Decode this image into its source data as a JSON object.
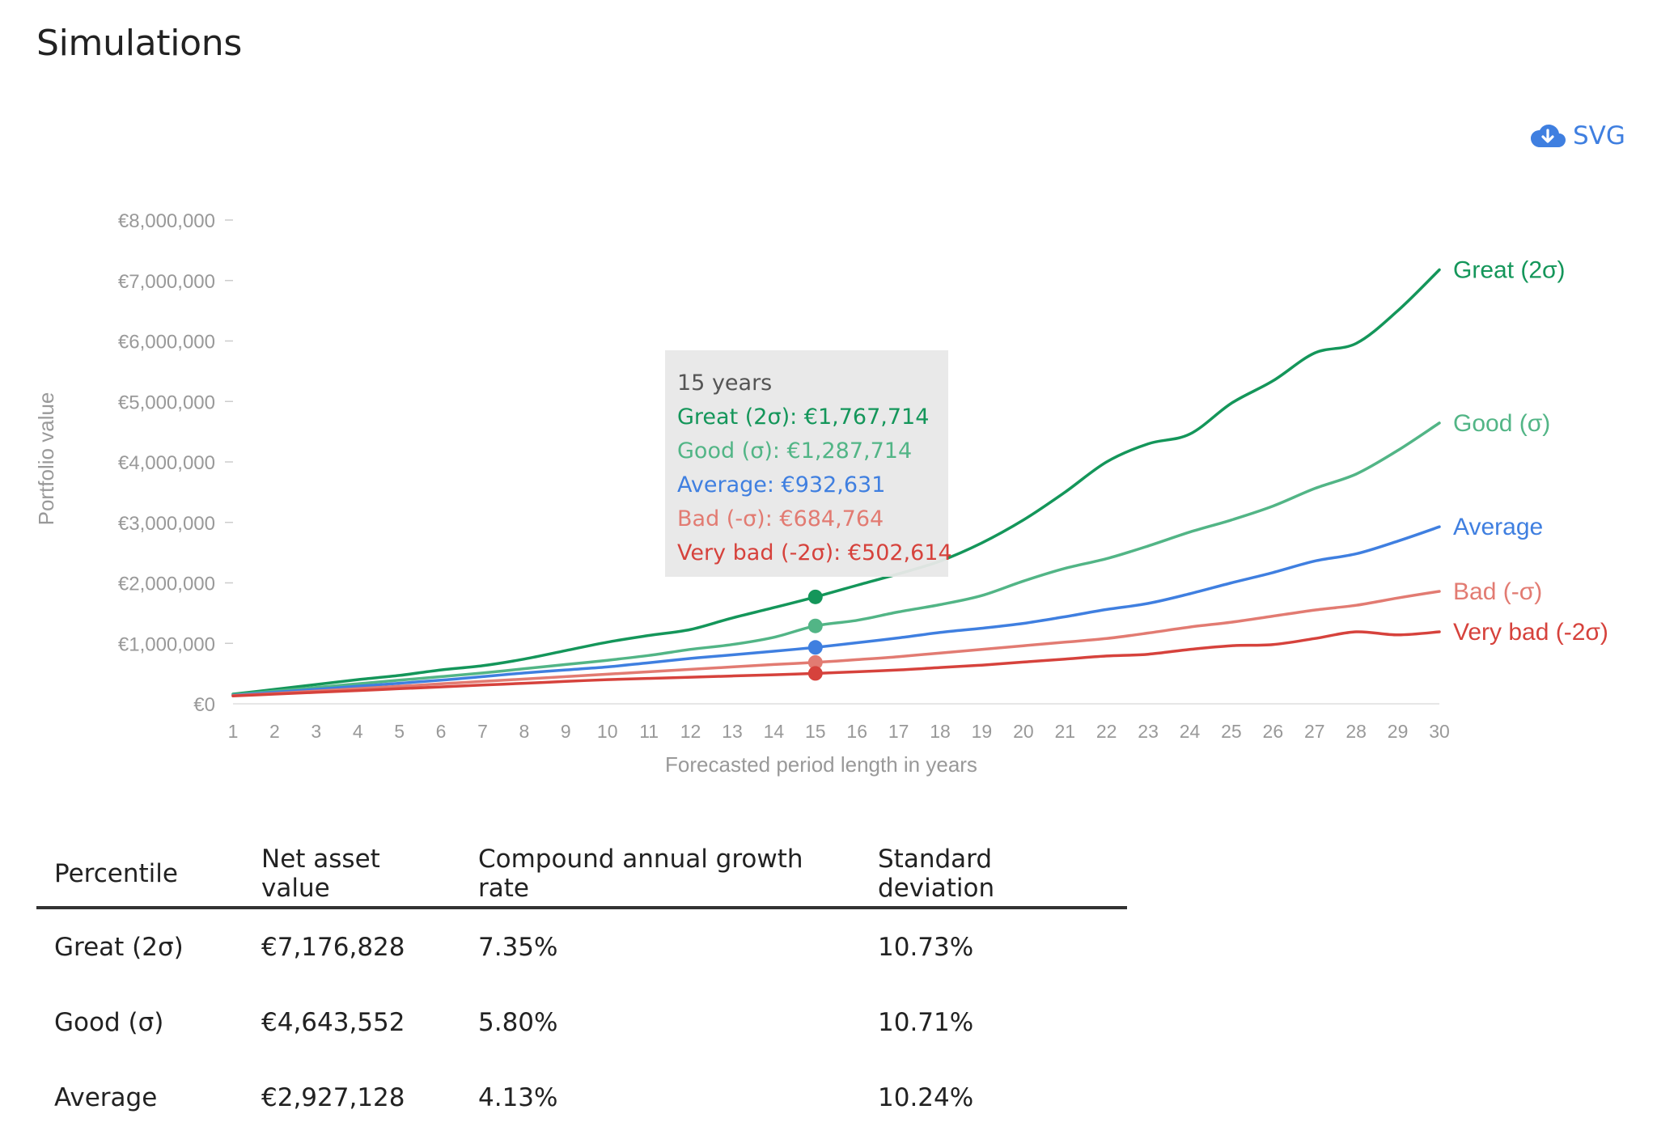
{
  "page": {
    "title": "Simulations"
  },
  "download": {
    "label": "SVG",
    "icon": "cloud-download-icon"
  },
  "chart_data": {
    "type": "line",
    "xlabel": "Forecasted period length in years",
    "ylabel": "Portfolio value",
    "x": [
      1,
      2,
      3,
      4,
      5,
      6,
      7,
      8,
      9,
      10,
      11,
      12,
      13,
      14,
      15,
      16,
      17,
      18,
      19,
      20,
      21,
      22,
      23,
      24,
      25,
      26,
      27,
      28,
      29,
      30
    ],
    "ylim": [
      0,
      8000000
    ],
    "yticks": [
      0,
      1000000,
      2000000,
      3000000,
      4000000,
      5000000,
      6000000,
      7000000,
      8000000
    ],
    "ytick_labels": [
      "€0",
      "€1,000,000",
      "€2,000,000",
      "€3,000,000",
      "€4,000,000",
      "€5,000,000",
      "€6,000,000",
      "€7,000,000",
      "€8,000,000"
    ],
    "grid": false,
    "legend": "end-of-line labels",
    "series": [
      {
        "name": "Great (2σ)",
        "color": "#14965a",
        "values": [
          160000,
          240000,
          320000,
          400000,
          470000,
          560000,
          630000,
          740000,
          880000,
          1020000,
          1130000,
          1230000,
          1420000,
          1590000,
          1767714,
          1960000,
          2150000,
          2360000,
          2660000,
          3040000,
          3500000,
          4000000,
          4300000,
          4460000,
          4970000,
          5340000,
          5800000,
          5960000,
          6500000,
          7176828
        ]
      },
      {
        "name": "Good (σ)",
        "color": "#52b586",
        "values": [
          150000,
          210000,
          270000,
          330000,
          390000,
          450000,
          510000,
          580000,
          650000,
          720000,
          800000,
          900000,
          980000,
          1100000,
          1287714,
          1380000,
          1520000,
          1640000,
          1790000,
          2030000,
          2240000,
          2400000,
          2610000,
          2840000,
          3040000,
          3270000,
          3560000,
          3800000,
          4190000,
          4643552
        ]
      },
      {
        "name": "Average",
        "color": "#3f7fe0",
        "values": [
          140000,
          190000,
          240000,
          290000,
          340000,
          390000,
          450000,
          510000,
          560000,
          610000,
          680000,
          750000,
          810000,
          870000,
          932631,
          1010000,
          1090000,
          1180000,
          1250000,
          1330000,
          1440000,
          1560000,
          1660000,
          1820000,
          2000000,
          2170000,
          2360000,
          2480000,
          2690000,
          2927128
        ]
      },
      {
        "name": "Bad (-σ)",
        "color": "#e27b72",
        "values": [
          135000,
          170000,
          210000,
          250000,
          290000,
          330000,
          370000,
          410000,
          450000,
          490000,
          530000,
          570000,
          610000,
          650000,
          684764,
          730000,
          780000,
          840000,
          900000,
          960000,
          1020000,
          1080000,
          1170000,
          1270000,
          1350000,
          1450000,
          1550000,
          1630000,
          1750000,
          1860000
        ]
      },
      {
        "name": "Very bad (-2σ)",
        "color": "#d6423c",
        "values": [
          130000,
          160000,
          190000,
          220000,
          250000,
          280000,
          310000,
          340000,
          370000,
          400000,
          420000,
          440000,
          460000,
          480000,
          502614,
          530000,
          560000,
          600000,
          640000,
          690000,
          740000,
          790000,
          820000,
          900000,
          960000,
          980000,
          1080000,
          1190000,
          1140000,
          1190000
        ]
      }
    ],
    "highlight_index": 14
  },
  "tooltip": {
    "title": "15 years",
    "rows": [
      {
        "text": "Great (2σ): €1,767,714",
        "color": "#14965a"
      },
      {
        "text": "Good (σ): €1,287,714",
        "color": "#52b586"
      },
      {
        "text": "Average: €932,631",
        "color": "#3f7fe0"
      },
      {
        "text": "Bad (-σ): €684,764",
        "color": "#e27b72"
      },
      {
        "text": "Very bad (-2σ): €502,614",
        "color": "#d6423c"
      }
    ]
  },
  "table": {
    "headers": [
      "Percentile",
      "Net asset value",
      "Compound annual growth rate",
      "Standard deviation"
    ],
    "rows": [
      [
        "Great (2σ)",
        "€7,176,828",
        "7.35%",
        "10.73%"
      ],
      [
        "Good (σ)",
        "€4,643,552",
        "5.80%",
        "10.71%"
      ],
      [
        "Average",
        "€2,927,128",
        "4.13%",
        "10.24%"
      ]
    ]
  }
}
